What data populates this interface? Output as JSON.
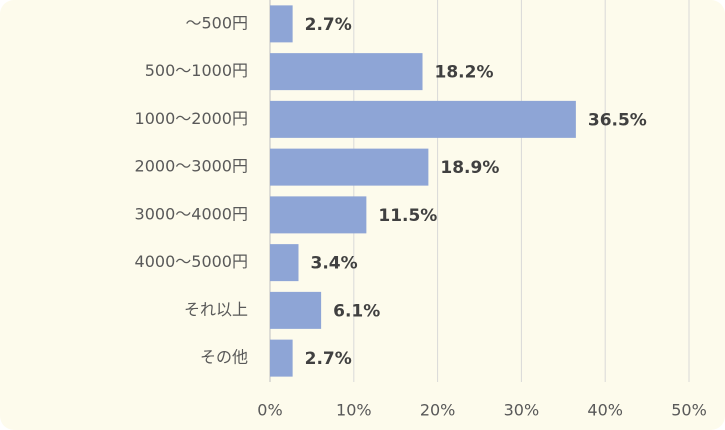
{
  "chart_data": {
    "type": "bar",
    "categories": [
      "～500円",
      "500～1000円",
      "1000～2000円",
      "2000～3000円",
      "3000～4000円",
      "4000～5000円",
      "それ以上",
      "その他"
    ],
    "values": [
      2.7,
      18.2,
      36.5,
      18.9,
      11.5,
      3.4,
      6.1,
      2.7
    ],
    "value_labels": [
      "2.7%",
      "18.2%",
      "36.5%",
      "18.9%",
      "11.5%",
      "3.4%",
      "6.1%",
      "2.7%"
    ],
    "color": "#8ea5d6",
    "xlim": [
      0,
      50
    ],
    "xticks": [
      {
        "value": 0,
        "label": "0%"
      },
      {
        "value": 10,
        "label": "10%"
      },
      {
        "value": 20,
        "label": "20%"
      },
      {
        "value": 30,
        "label": "30%"
      },
      {
        "value": 40,
        "label": "40%"
      },
      {
        "value": 50,
        "label": "50%"
      }
    ],
    "grid": true
  }
}
